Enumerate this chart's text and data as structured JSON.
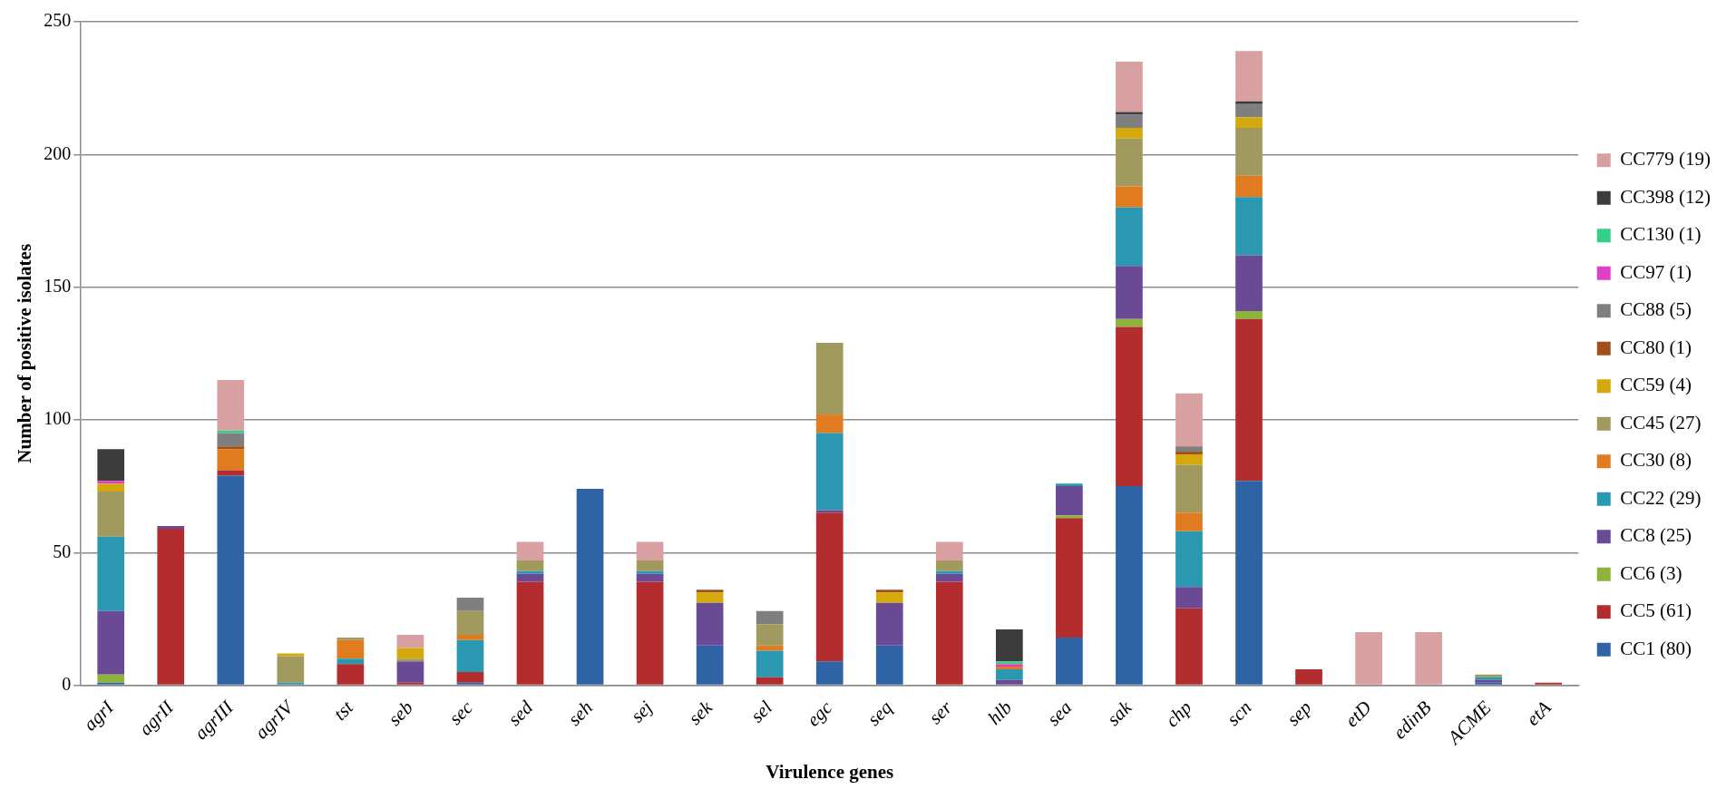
{
  "chart_data": {
    "type": "bar",
    "stacked": true,
    "xlabel": "Virulence genes",
    "ylabel": "Number of positive isolates",
    "categories": [
      "agrI",
      "agrII",
      "agrIII",
      "agrIV",
      "tst",
      "seb",
      "sec",
      "sed",
      "seh",
      "sej",
      "sek",
      "sel",
      "egc",
      "seq",
      "ser",
      "hlb",
      "sea",
      "sak",
      "chp",
      "scn",
      "sep",
      "etD",
      "edinB",
      "ACME",
      "etA"
    ],
    "ylim": [
      0,
      250
    ],
    "yticks": [
      0,
      50,
      100,
      150,
      200,
      250
    ],
    "grid": "y",
    "legend": "right",
    "series": [
      {
        "name": "CC1 (80)",
        "color": "#2e63a6",
        "values": [
          1,
          0,
          79,
          0,
          0,
          0,
          1,
          0,
          74,
          0,
          15,
          0,
          9,
          15,
          0,
          0,
          18,
          75,
          0,
          77,
          0,
          0,
          0,
          1,
          0
        ]
      },
      {
        "name": "CC5 (61)",
        "color": "#b32d2e",
        "values": [
          0,
          59,
          2,
          0,
          8,
          1,
          4,
          39,
          0,
          39,
          0,
          3,
          56,
          0,
          39,
          0,
          45,
          60,
          29,
          61,
          6,
          0,
          0,
          0,
          1
        ]
      },
      {
        "name": "CC6 (3)",
        "color": "#8db33a",
        "values": [
          3,
          0,
          0,
          0,
          0,
          0,
          0,
          0,
          0,
          0,
          0,
          0,
          0,
          0,
          0,
          0,
          1,
          3,
          0,
          3,
          0,
          0,
          0,
          0,
          0
        ]
      },
      {
        "name": "CC8 (25)",
        "color": "#6a4a94",
        "values": [
          24,
          1,
          0,
          0,
          0,
          8,
          0,
          3,
          0,
          3,
          16,
          0,
          1,
          16,
          3,
          2,
          11,
          20,
          8,
          21,
          0,
          0,
          0,
          1,
          0
        ]
      },
      {
        "name": "CC22 (29)",
        "color": "#2a98b0",
        "values": [
          28,
          0,
          0,
          1,
          2,
          0,
          12,
          1,
          0,
          1,
          0,
          10,
          29,
          0,
          1,
          4,
          1,
          22,
          21,
          22,
          0,
          0,
          0,
          1,
          0
        ]
      },
      {
        "name": "CC30 (8)",
        "color": "#e07b20",
        "values": [
          0,
          0,
          8,
          0,
          7,
          0,
          2,
          0,
          0,
          0,
          0,
          2,
          7,
          0,
          0,
          1,
          0,
          8,
          7,
          8,
          0,
          0,
          0,
          0,
          0
        ]
      },
      {
        "name": "CC45 (27)",
        "color": "#a19a5e",
        "values": [
          17,
          0,
          0,
          10,
          1,
          1,
          9,
          4,
          0,
          4,
          0,
          8,
          27,
          0,
          4,
          0,
          0,
          18,
          18,
          18,
          0,
          0,
          0,
          1,
          0
        ]
      },
      {
        "name": "CC59 (4)",
        "color": "#d4a90c",
        "values": [
          3,
          0,
          0,
          1,
          0,
          4,
          0,
          0,
          0,
          0,
          4,
          0,
          0,
          4,
          0,
          0,
          0,
          4,
          4,
          4,
          0,
          0,
          0,
          0,
          0
        ]
      },
      {
        "name": "CC80 (1)",
        "color": "#a0501a",
        "values": [
          0,
          0,
          1,
          0,
          0,
          0,
          0,
          0,
          0,
          0,
          1,
          0,
          0,
          1,
          0,
          0,
          0,
          0,
          1,
          0,
          0,
          0,
          0,
          0,
          0
        ]
      },
      {
        "name": "CC88 (5)",
        "color": "#7f7f7f",
        "values": [
          0,
          0,
          5,
          0,
          0,
          0,
          5,
          0,
          0,
          0,
          0,
          5,
          0,
          0,
          0,
          0,
          0,
          5,
          2,
          5,
          0,
          0,
          0,
          0,
          0
        ]
      },
      {
        "name": "CC97 (1)",
        "color": "#e040c8",
        "values": [
          1,
          0,
          0,
          0,
          0,
          0,
          0,
          0,
          0,
          0,
          0,
          0,
          0,
          0,
          0,
          1,
          0,
          0,
          0,
          0,
          0,
          0,
          0,
          0,
          0
        ]
      },
      {
        "name": "CC130 (1)",
        "color": "#34d08a",
        "values": [
          0,
          0,
          1,
          0,
          0,
          0,
          0,
          0,
          0,
          0,
          0,
          0,
          0,
          0,
          0,
          1,
          0,
          0,
          0,
          0,
          0,
          0,
          0,
          0,
          0
        ]
      },
      {
        "name": "CC398 (12)",
        "color": "#3c3c3c",
        "values": [
          12,
          0,
          0,
          0,
          0,
          0,
          0,
          0,
          0,
          0,
          0,
          0,
          0,
          0,
          0,
          12,
          0,
          1,
          0,
          1,
          0,
          0,
          0,
          0,
          0
        ]
      },
      {
        "name": "CC779 (19)",
        "color": "#d8a0a0",
        "values": [
          0,
          0,
          19,
          0,
          0,
          5,
          0,
          7,
          0,
          7,
          0,
          0,
          0,
          0,
          7,
          0,
          0,
          19,
          20,
          19,
          0,
          20,
          20,
          0,
          0
        ]
      }
    ]
  }
}
